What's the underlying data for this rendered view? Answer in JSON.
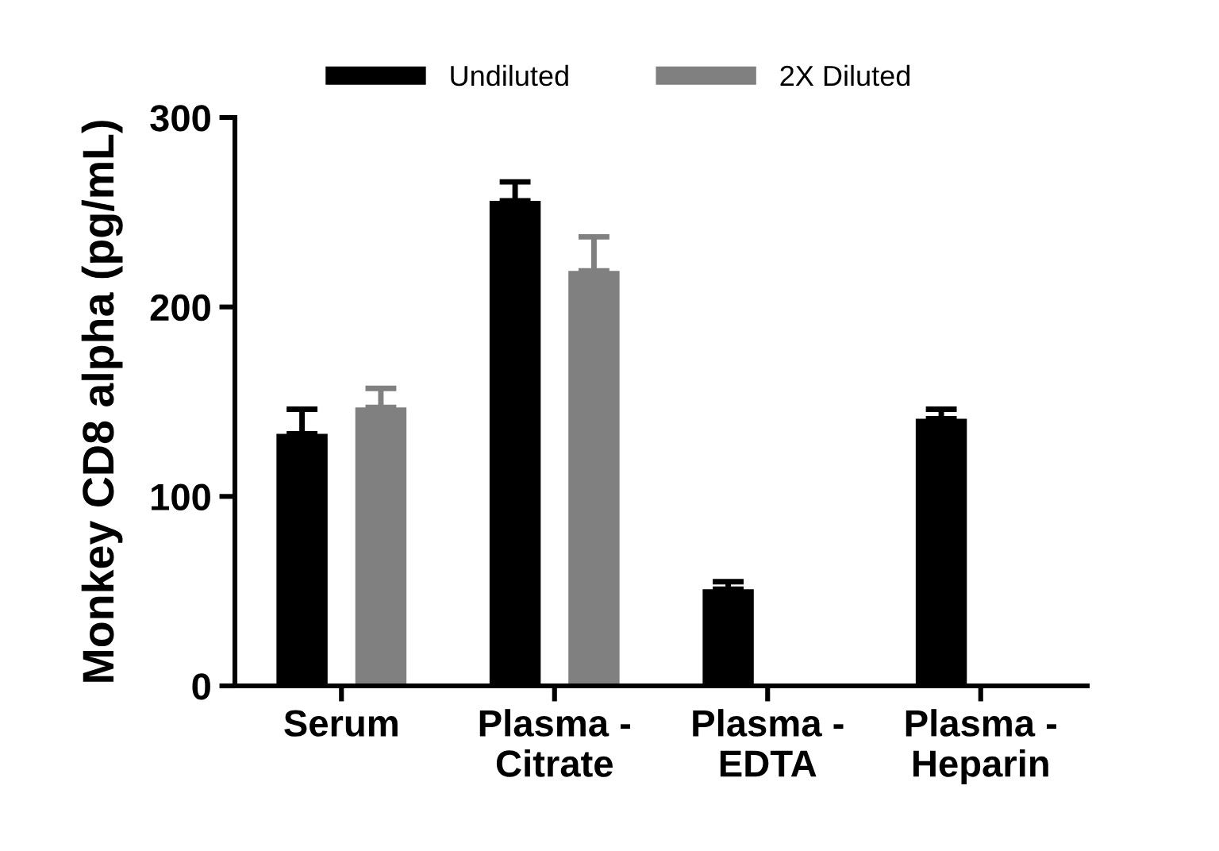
{
  "chart_data": {
    "type": "bar",
    "ylabel": "Monkey CD8 alpha (pg/mL)",
    "categories": [
      "Serum",
      "Plasma -\nCitrate",
      "Plasma -\nEDTA",
      "Plasma -\nHeparin"
    ],
    "series": [
      {
        "name": "Undiluted",
        "color": "#000000",
        "values": [
          133,
          256,
          51,
          141
        ],
        "errors": [
          [
            133,
            146
          ],
          [
            256,
            266
          ],
          [
            51,
            55
          ],
          [
            141,
            146
          ]
        ]
      },
      {
        "name": "2X Diluted",
        "color": "#808080",
        "values": [
          147,
          219,
          null,
          null
        ],
        "errors": [
          [
            147,
            157
          ],
          [
            219,
            237
          ],
          null,
          null
        ]
      }
    ],
    "ylim": [
      0,
      300
    ],
    "yticks": [
      0,
      100,
      200,
      300
    ],
    "grid": false,
    "legend": "top"
  }
}
